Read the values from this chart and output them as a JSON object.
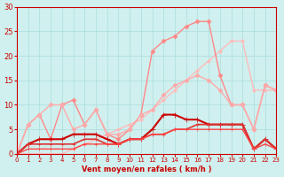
{
  "background_color": "#cff0ee",
  "grid_color": "#aadddd",
  "text_color": "#cc0000",
  "xlabel": "Vent moyen/en rafales ( km/h )",
  "xlim": [
    0,
    23
  ],
  "ylim": [
    0,
    30
  ],
  "yticks": [
    0,
    5,
    10,
    15,
    20,
    25,
    30
  ],
  "xticks": [
    0,
    1,
    2,
    3,
    4,
    5,
    6,
    7,
    8,
    9,
    10,
    11,
    12,
    13,
    14,
    15,
    16,
    17,
    18,
    19,
    20,
    21,
    22,
    23
  ],
  "lines": [
    {
      "x": [
        0,
        1,
        2,
        3,
        4,
        5,
        6,
        7,
        8,
        9,
        10,
        11,
        12,
        13,
        14,
        15,
        16,
        17,
        18,
        19,
        20,
        21,
        22,
        23
      ],
      "y": [
        0,
        0,
        0,
        0,
        0,
        1,
        2,
        3,
        4,
        5,
        6,
        7,
        9,
        11,
        13,
        15,
        17,
        19,
        21,
        23,
        23,
        13,
        13,
        13
      ],
      "color": "#ffbbbb",
      "lw": 1.0,
      "marker": "D",
      "ms": 2.0
    },
    {
      "x": [
        0,
        1,
        2,
        3,
        4,
        5,
        6,
        7,
        8,
        9,
        10,
        11,
        12,
        13,
        14,
        15,
        16,
        17,
        18,
        19,
        20,
        21,
        22,
        23
      ],
      "y": [
        0,
        6,
        8,
        3,
        10,
        11,
        6,
        9,
        4,
        3,
        5,
        8,
        21,
        23,
        24,
        26,
        27,
        27,
        16,
        10,
        10,
        5,
        14,
        13
      ],
      "color": "#ff8888",
      "lw": 1.0,
      "marker": "D",
      "ms": 2.5
    },
    {
      "x": [
        0,
        1,
        2,
        3,
        4,
        5,
        6,
        7,
        8,
        9,
        10,
        11,
        12,
        13,
        14,
        15,
        16,
        17,
        18,
        19,
        20,
        21,
        22,
        23
      ],
      "y": [
        0,
        6,
        8,
        10,
        10,
        5,
        6,
        9,
        4,
        4,
        5,
        8,
        9,
        12,
        14,
        15,
        16,
        15,
        13,
        10,
        10,
        5,
        14,
        13
      ],
      "color": "#ffaaaa",
      "lw": 1.0,
      "marker": "D",
      "ms": 2.5
    },
    {
      "x": [
        0,
        1,
        2,
        3,
        4,
        5,
        6,
        7,
        8,
        9,
        10,
        11,
        12,
        13,
        14,
        15,
        16,
        17,
        18,
        19,
        20,
        21,
        22,
        23
      ],
      "y": [
        0,
        2,
        3,
        3,
        3,
        4,
        4,
        4,
        3,
        2,
        3,
        3,
        5,
        8,
        8,
        7,
        7,
        6,
        6,
        6,
        6,
        1,
        3,
        1
      ],
      "color": "#cc0000",
      "lw": 1.5,
      "marker": "+",
      "ms": 4.0
    },
    {
      "x": [
        0,
        1,
        2,
        3,
        4,
        5,
        6,
        7,
        8,
        9,
        10,
        11,
        12,
        13,
        14,
        15,
        16,
        17,
        18,
        19,
        20,
        21,
        22,
        23
      ],
      "y": [
        0,
        2,
        2,
        2,
        2,
        2,
        3,
        3,
        2,
        2,
        3,
        3,
        4,
        4,
        5,
        5,
        6,
        6,
        6,
        6,
        6,
        1,
        3,
        1
      ],
      "color": "#dd3333",
      "lw": 1.2,
      "marker": "+",
      "ms": 3.5
    },
    {
      "x": [
        0,
        1,
        2,
        3,
        4,
        5,
        6,
        7,
        8,
        9,
        10,
        11,
        12,
        13,
        14,
        15,
        16,
        17,
        18,
        19,
        20,
        21,
        22,
        23
      ],
      "y": [
        0,
        1,
        1,
        1,
        1,
        1,
        2,
        2,
        2,
        2,
        3,
        3,
        4,
        4,
        5,
        5,
        5,
        5,
        5,
        5,
        5,
        1,
        2,
        1
      ],
      "color": "#ff4444",
      "lw": 1.0,
      "marker": "+",
      "ms": 3.0
    }
  ]
}
